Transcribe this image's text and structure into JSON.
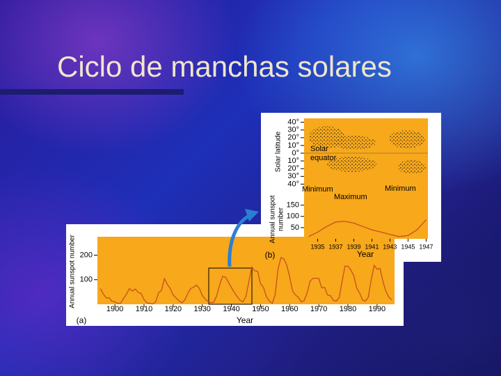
{
  "title": "Ciclo de manchas solares",
  "chart_data": [
    {
      "type": "line",
      "panel_label": "(a)",
      "x_label": "Year",
      "y_label": "Annual sunspot number",
      "color": "#c8501e",
      "background": "#f7a81b",
      "x": [
        1895,
        1896,
        1897,
        1898,
        1899,
        1900,
        1901,
        1902,
        1903,
        1904,
        1905,
        1906,
        1907,
        1908,
        1909,
        1910,
        1911,
        1912,
        1913,
        1914,
        1915,
        1916,
        1917,
        1918,
        1919,
        1920,
        1921,
        1922,
        1923,
        1924,
        1925,
        1926,
        1927,
        1928,
        1929,
        1930,
        1931,
        1932,
        1933,
        1934,
        1935,
        1936,
        1937,
        1938,
        1939,
        1940,
        1941,
        1942,
        1943,
        1944,
        1945,
        1946,
        1947,
        1948,
        1949,
        1950,
        1951,
        1952,
        1953,
        1954,
        1955,
        1956,
        1957,
        1958,
        1959,
        1960,
        1961,
        1962,
        1963,
        1964,
        1965,
        1966,
        1967,
        1968,
        1969,
        1970,
        1971,
        1972,
        1973,
        1974,
        1975,
        1976,
        1977,
        1978,
        1979,
        1980,
        1981,
        1982,
        1983,
        1984,
        1985,
        1986,
        1987,
        1988,
        1989,
        1990,
        1991,
        1992,
        1993,
        1994,
        1995
      ],
      "values": [
        64,
        42,
        26,
        27,
        12,
        10,
        3,
        5,
        24,
        42,
        64,
        54,
        62,
        49,
        44,
        19,
        6,
        4,
        1,
        10,
        47,
        57,
        104,
        81,
        64,
        38,
        26,
        14,
        6,
        17,
        44,
        64,
        69,
        78,
        65,
        36,
        21,
        11,
        6,
        9,
        36,
        80,
        114,
        110,
        89,
        68,
        48,
        31,
        16,
        10,
        33,
        93,
        152,
        136,
        135,
        84,
        69,
        32,
        14,
        4,
        38,
        142,
        190,
        185,
        159,
        112,
        54,
        38,
        28,
        10,
        15,
        47,
        94,
        106,
        106,
        105,
        67,
        69,
        38,
        35,
        16,
        13,
        28,
        93,
        155,
        155,
        140,
        116,
        67,
        46,
        18,
        13,
        29,
        100,
        158,
        143,
        146,
        94,
        54,
        30,
        18
      ],
      "xlim": [
        1894,
        1996
      ],
      "ylim": [
        0,
        275
      ],
      "xticks": [
        1900,
        1910,
        1920,
        1930,
        1940,
        1950,
        1960,
        1970,
        1980,
        1990
      ],
      "yticks": [
        100,
        200
      ]
    },
    {
      "type": "line",
      "panel_label": "(b)",
      "x_label": "Year",
      "y_label": [
        "Annual sunspot",
        "number"
      ],
      "lat_label": "Solar latitude",
      "color": "#c8501e",
      "background": "#f7a81b",
      "annotations": [
        "Solar",
        "equator",
        "Minimum",
        "Maximum",
        "Minimum"
      ],
      "x": [
        1934,
        1935,
        1936,
        1937,
        1938,
        1939,
        1940,
        1941,
        1942,
        1943,
        1944,
        1945,
        1946,
        1947
      ],
      "values": [
        10,
        30,
        55,
        75,
        78,
        70,
        55,
        40,
        30,
        20,
        10,
        15,
        40,
        85
      ],
      "xlim": [
        1933.5,
        1947.2
      ],
      "ylim": [
        0,
        180
      ],
      "xticks": [
        1935,
        1937,
        1939,
        1941,
        1943,
        1945,
        1947
      ],
      "yticks": [
        50,
        100,
        150
      ],
      "lat_lim": [
        -45,
        45
      ],
      "lat_ticks": [
        {
          "value": 40,
          "label": "40°"
        },
        {
          "value": 30,
          "label": "30°"
        },
        {
          "value": 20,
          "label": "20°"
        },
        {
          "value": 10,
          "label": "10°"
        },
        {
          "value": 0,
          "label": "0°"
        },
        {
          "value": -10,
          "label": "10°"
        },
        {
          "value": -20,
          "label": "20°"
        },
        {
          "value": -30,
          "label": "30°"
        },
        {
          "value": -40,
          "label": "40°"
        }
      ]
    }
  ]
}
